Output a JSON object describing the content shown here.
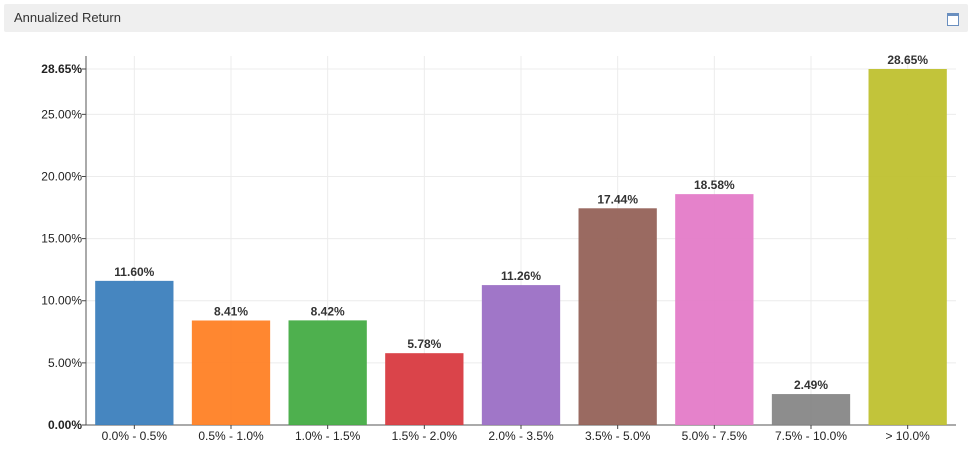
{
  "panel": {
    "title": "Annualized Return",
    "window_icon": "maximize-window-icon"
  },
  "chart_data": {
    "type": "bar",
    "title": "Annualized Return",
    "xlabel": "",
    "ylabel": "",
    "categories": [
      "0.0% - 0.5%",
      "0.5% - 1.0%",
      "1.0% - 1.5%",
      "1.5% - 2.0%",
      "2.0% - 3.5%",
      "3.5% - 5.0%",
      "5.0% - 7.5%",
      "7.5% - 10.0%",
      "> 10.0%"
    ],
    "values": [
      11.6,
      8.41,
      8.42,
      5.78,
      11.26,
      17.44,
      18.58,
      2.49,
      28.65
    ],
    "value_labels": [
      "11.60%",
      "8.41%",
      "8.42%",
      "5.78%",
      "11.26%",
      "17.44%",
      "18.58%",
      "2.49%",
      "28.65%"
    ],
    "colors": [
      "#3c7fbd",
      "#ff8125",
      "#44ac44",
      "#d83a40",
      "#9b6fc5",
      "#956259",
      "#e47bc8",
      "#878787",
      "#bfc12f"
    ],
    "ylim": [
      0,
      28.65
    ],
    "yticks": [
      0,
      5,
      10,
      15,
      20,
      25,
      28.65
    ],
    "ytick_labels": [
      "0.00%",
      "5.00%",
      "10.00%",
      "15.00%",
      "20.00%",
      "25.00%",
      "28.65%"
    ],
    "bold_ticks": [
      "0.00%",
      "28.65%"
    ],
    "grid": true,
    "legend": "none"
  }
}
